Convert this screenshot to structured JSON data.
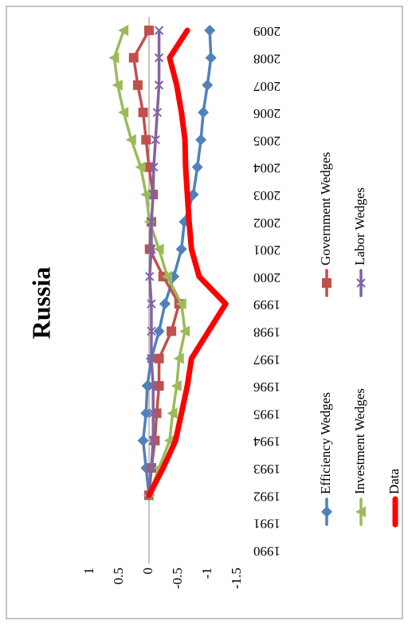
{
  "chart_data": {
    "type": "line",
    "title": "Russia",
    "categories": [
      "1990",
      "1991",
      "1992",
      "1993",
      "1994",
      "1995",
      "1996",
      "1997",
      "1998",
      "1999",
      "2000",
      "2001",
      "2002",
      "2003",
      "2004",
      "2005",
      "2006",
      "2007",
      "2008",
      "2009"
    ],
    "series": [
      {
        "name": "Efficiency Wedges",
        "color": "#4f81bd",
        "marker": "diamond",
        "values": [
          null,
          null,
          0,
          0.05,
          0.1,
          0.05,
          0.03,
          -0.04,
          -0.17,
          -0.27,
          -0.42,
          -0.55,
          -0.6,
          -0.75,
          -0.82,
          -0.88,
          -0.92,
          -0.99,
          -1.05,
          -1.03
        ]
      },
      {
        "name": "Government Wedges",
        "color": "#c0504d",
        "marker": "square",
        "values": [
          null,
          null,
          0,
          -0.04,
          -0.1,
          -0.13,
          -0.17,
          -0.17,
          -0.38,
          -0.51,
          -0.24,
          -0.01,
          -0.04,
          -0.07,
          0,
          0.05,
          0.1,
          0.19,
          0.26,
          0
        ]
      },
      {
        "name": "Investment Wedges",
        "color": "#9bbb59",
        "marker": "triangle",
        "values": [
          null,
          null,
          0,
          -0.17,
          -0.35,
          -0.4,
          -0.47,
          -0.51,
          -0.61,
          -0.55,
          -0.31,
          -0.17,
          -0.01,
          0.05,
          0.14,
          0.3,
          0.43,
          0.53,
          0.59,
          0.43
        ]
      },
      {
        "name": "Labor Wedges",
        "color": "#8064a2",
        "marker": "x",
        "values": [
          null,
          null,
          0,
          -0.04,
          -0.07,
          -0.07,
          -0.07,
          -0.04,
          -0.04,
          -0.04,
          -0.01,
          -0.04,
          -0.04,
          -0.07,
          -0.08,
          -0.11,
          -0.14,
          -0.17,
          -0.17,
          -0.17
        ]
      },
      {
        "name": "Data",
        "color": "#ff0000",
        "marker": "none",
        "values": [
          null,
          null,
          0,
          -0.24,
          -0.45,
          -0.55,
          -0.65,
          -0.72,
          -1.01,
          -1.3,
          -0.85,
          -0.72,
          -0.68,
          -0.65,
          -0.62,
          -0.61,
          -0.55,
          -0.47,
          -0.35,
          -0.65
        ]
      }
    ],
    "ylim": [
      -1.5,
      1
    ],
    "yticks": [
      -1.5,
      -1,
      -0.5,
      0,
      0.5,
      1
    ],
    "legend": "bottom",
    "rotation": -90
  }
}
